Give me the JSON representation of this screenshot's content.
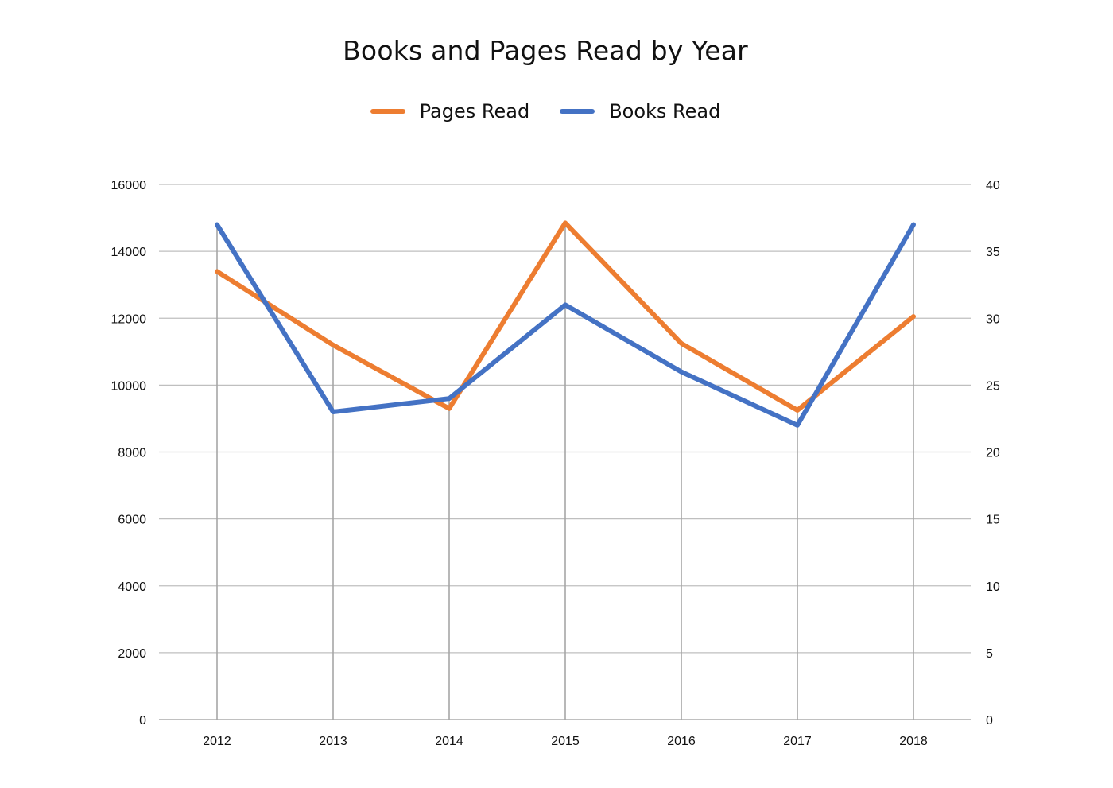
{
  "chart_data": {
    "type": "line",
    "title": "Books and Pages Read by Year",
    "categories": [
      "2012",
      "2013",
      "2014",
      "2015",
      "2016",
      "2017",
      "2018"
    ],
    "series": [
      {
        "name": "Pages Read",
        "axis": "left",
        "color": "#ED7D31",
        "values": [
          13400,
          11200,
          9300,
          14850,
          11250,
          9250,
          12050
        ]
      },
      {
        "name": "Books Read",
        "axis": "right",
        "color": "#4472C4",
        "values": [
          37,
          23,
          24,
          31,
          26,
          22,
          37
        ]
      }
    ],
    "y_left": {
      "ylim": [
        0,
        16000
      ],
      "ticks": [
        "0",
        "2000",
        "4000",
        "6000",
        "8000",
        "10000",
        "12000",
        "14000",
        "16000"
      ]
    },
    "y_right": {
      "ylim": [
        0,
        40
      ],
      "ticks": [
        "0",
        "5",
        "10",
        "15",
        "20",
        "25",
        "30",
        "35",
        "40"
      ]
    },
    "xlabel": "",
    "ylabel": "",
    "grid": true,
    "legend_position": "top-center",
    "drop_lines": true,
    "gridline_color": "#bfbfbf",
    "dropline_color": "#a6a6a6"
  }
}
